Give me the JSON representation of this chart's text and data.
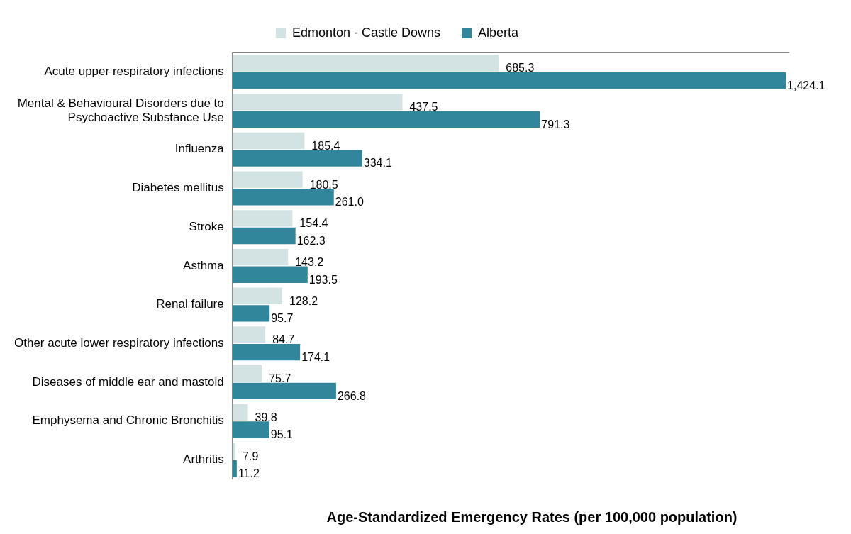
{
  "chart_data": {
    "type": "bar",
    "orientation": "horizontal",
    "xlabel": "Age-Standardized Emergency Rates (per 100,000 population)",
    "legend": "top",
    "categories": [
      "Acute upper respiratory infections",
      "Mental & Behavioural Disorders due to Psychoactive Substance Use",
      "Influenza",
      "Diabetes mellitus",
      "Stroke",
      "Asthma",
      "Renal failure",
      "Other acute lower respiratory infections",
      "Diseases of middle ear and mastoid",
      "Emphysema and Chronic Bronchitis",
      "Arthritis"
    ],
    "series": [
      {
        "name": "Edmonton - Castle Downs",
        "color": "#d3e3e3",
        "values": [
          685.3,
          437.5,
          185.4,
          180.5,
          154.4,
          143.2,
          128.2,
          84.7,
          75.7,
          39.8,
          7.9
        ],
        "value_labels": [
          "685.3",
          "437.5",
          "185.4",
          "180.5",
          "154.4",
          "143.2",
          "128.2",
          "84.7",
          "75.7",
          "39.8",
          "7.9"
        ]
      },
      {
        "name": "Alberta",
        "color": "#31869c",
        "values": [
          1424.1,
          791.3,
          334.1,
          261.0,
          162.3,
          193.5,
          95.7,
          174.1,
          266.8,
          95.1,
          11.2
        ],
        "value_labels": [
          "1,424.1",
          "791.3",
          "334.1",
          "261.0",
          "162.3",
          "193.5",
          "95.7",
          "174.1",
          "266.8",
          "95.1",
          "11.2"
        ]
      }
    ]
  }
}
